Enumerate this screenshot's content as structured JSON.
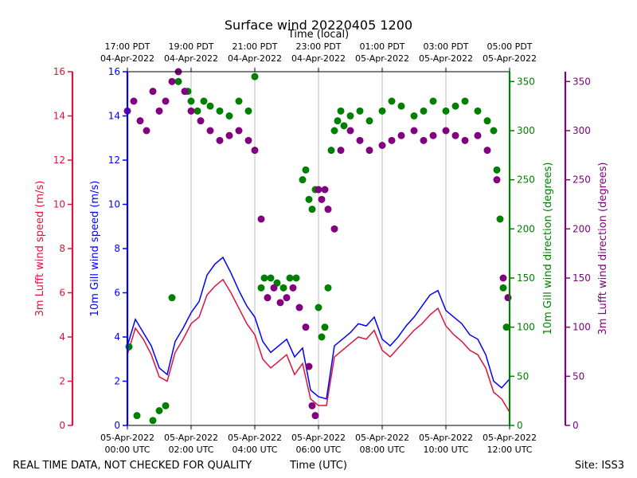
{
  "chart_data": {
    "type": "line+scatter",
    "title": "Surface wind 20220405 1200",
    "top_axis_label": "Time (local)",
    "xlabel": "Time (UTC)",
    "footer_left": "REAL TIME DATA, NOT CHECKED FOR QUALITY",
    "footer_right": "Site: ISS3",
    "x_range_hours": [
      0,
      12
    ],
    "bottom_ticks": [
      {
        "hour": 0,
        "line1": "05-Apr-2022",
        "line2": "00:00 UTC"
      },
      {
        "hour": 2,
        "line1": "05-Apr-2022",
        "line2": "02:00 UTC"
      },
      {
        "hour": 4,
        "line1": "05-Apr-2022",
        "line2": "04:00 UTC"
      },
      {
        "hour": 6,
        "line1": "05-Apr-2022",
        "line2": "06:00 UTC"
      },
      {
        "hour": 8,
        "line1": "05-Apr-2022",
        "line2": "08:00 UTC"
      },
      {
        "hour": 10,
        "line1": "05-Apr-2022",
        "line2": "10:00 UTC"
      },
      {
        "hour": 12,
        "line1": "05-Apr-2022",
        "line2": "12:00 UTC"
      }
    ],
    "top_ticks": [
      {
        "hour": 0,
        "line1": "17:00 PDT",
        "line2": "04-Apr-2022"
      },
      {
        "hour": 2,
        "line1": "19:00 PDT",
        "line2": "04-Apr-2022"
      },
      {
        "hour": 4,
        "line1": "21:00 PDT",
        "line2": "04-Apr-2022"
      },
      {
        "hour": 6,
        "line1": "23:00 PDT",
        "line2": "04-Apr-2022"
      },
      {
        "hour": 8,
        "line1": "01:00 PDT",
        "line2": "05-Apr-2022"
      },
      {
        "hour": 10,
        "line1": "03:00 PDT",
        "line2": "05-Apr-2022"
      },
      {
        "hour": 12,
        "line1": "05:00 PDT",
        "line2": "05-Apr-2022"
      }
    ],
    "axes": {
      "lufft_speed": {
        "label": "3m Lufft wind speed (m/s)",
        "range": [
          0,
          16
        ],
        "ticks": [
          0,
          2,
          4,
          6,
          8,
          10,
          12,
          14,
          16
        ],
        "color": "#dc143c"
      },
      "gill_speed": {
        "label": "10m Gill wind speed (m/s)",
        "range": [
          0,
          16
        ],
        "ticks": [
          0,
          2,
          4,
          6,
          8,
          10,
          12,
          14,
          16
        ],
        "color": "#0000ff"
      },
      "gill_dir": {
        "label": "10m Gill wind direction (degrees)",
        "range": [
          0,
          360
        ],
        "ticks": [
          0,
          50,
          100,
          150,
          200,
          250,
          300,
          350
        ],
        "color": "#008000"
      },
      "lufft_dir": {
        "label": "3m Lufft wind direction (degrees)",
        "range": [
          0,
          360
        ],
        "ticks": [
          0,
          50,
          100,
          150,
          200,
          250,
          300,
          350
        ],
        "color": "#800080"
      }
    },
    "series": [
      {
        "name": "10m Gill wind speed",
        "axis": "gill_speed",
        "style": "line",
        "color": "#0000ff",
        "hours": [
          0,
          0.25,
          0.5,
          0.75,
          1.0,
          1.25,
          1.5,
          1.75,
          2.0,
          2.25,
          2.5,
          2.75,
          3.0,
          3.25,
          3.5,
          3.75,
          4.0,
          4.25,
          4.5,
          4.75,
          5.0,
          5.25,
          5.5,
          5.75,
          6.0,
          6.25,
          6.5,
          6.75,
          7.0,
          7.25,
          7.5,
          7.75,
          8.0,
          8.25,
          8.5,
          8.75,
          9.0,
          9.25,
          9.5,
          9.75,
          10.0,
          10.25,
          10.5,
          10.75,
          11.0,
          11.25,
          11.5,
          11.75,
          12.0
        ],
        "values": [
          3.6,
          4.8,
          4.2,
          3.6,
          2.6,
          2.3,
          3.8,
          4.4,
          5.1,
          5.6,
          6.8,
          7.3,
          7.6,
          6.9,
          6.1,
          5.4,
          4.9,
          3.8,
          3.3,
          3.6,
          3.9,
          3.1,
          3.5,
          1.6,
          1.3,
          1.2,
          3.6,
          3.9,
          4.2,
          4.6,
          4.5,
          4.9,
          3.9,
          3.6,
          4.0,
          4.5,
          4.9,
          5.4,
          5.9,
          6.1,
          5.2,
          4.9,
          4.6,
          4.1,
          3.9,
          3.2,
          2.0,
          1.7,
          2.1
        ]
      },
      {
        "name": "3m Lufft wind speed",
        "axis": "lufft_speed",
        "style": "line",
        "color": "#dc143c",
        "hours": [
          0,
          0.25,
          0.5,
          0.75,
          1.0,
          1.25,
          1.5,
          1.75,
          2.0,
          2.25,
          2.5,
          2.75,
          3.0,
          3.25,
          3.5,
          3.75,
          4.0,
          4.25,
          4.5,
          4.75,
          5.0,
          5.25,
          5.5,
          5.75,
          6.0,
          6.25,
          6.5,
          6.75,
          7.0,
          7.25,
          7.5,
          7.75,
          8.0,
          8.25,
          8.5,
          8.75,
          9.0,
          9.25,
          9.5,
          9.75,
          10.0,
          10.25,
          10.5,
          10.75,
          11.0,
          11.25,
          11.5,
          11.75,
          12.0
        ],
        "values": [
          3.2,
          4.4,
          3.9,
          3.2,
          2.2,
          2.0,
          3.3,
          3.9,
          4.6,
          4.9,
          5.9,
          6.3,
          6.6,
          6.0,
          5.3,
          4.6,
          4.1,
          3.0,
          2.6,
          2.9,
          3.2,
          2.3,
          2.8,
          1.2,
          0.9,
          0.9,
          3.1,
          3.4,
          3.7,
          4.0,
          3.9,
          4.3,
          3.4,
          3.1,
          3.5,
          3.9,
          4.3,
          4.6,
          5.0,
          5.3,
          4.5,
          4.1,
          3.8,
          3.4,
          3.2,
          2.6,
          1.5,
          1.2,
          0.6
        ]
      },
      {
        "name": "10m Gill wind direction",
        "axis": "gill_dir",
        "style": "scatter",
        "color": "#008000",
        "hours": [
          0.05,
          0.3,
          0.8,
          1.0,
          1.2,
          1.4,
          1.6,
          1.9,
          2.0,
          2.2,
          2.4,
          2.6,
          2.9,
          3.2,
          3.5,
          3.8,
          4.0,
          4.2,
          4.3,
          4.5,
          4.7,
          4.9,
          5.1,
          5.3,
          5.5,
          5.6,
          5.7,
          5.8,
          5.9,
          6.0,
          6.1,
          6.2,
          6.3,
          6.4,
          6.5,
          6.6,
          6.7,
          6.8,
          7.0,
          7.3,
          7.6,
          8.0,
          8.3,
          8.6,
          9.0,
          9.3,
          9.6,
          10.0,
          10.3,
          10.6,
          11.0,
          11.3,
          11.5,
          11.6,
          11.7,
          11.8,
          11.9
        ],
        "values": [
          80,
          10,
          5,
          15,
          20,
          130,
          350,
          340,
          330,
          320,
          330,
          325,
          320,
          315,
          330,
          320,
          355,
          140,
          150,
          150,
          145,
          140,
          150,
          150,
          250,
          260,
          230,
          220,
          240,
          120,
          90,
          100,
          140,
          280,
          300,
          310,
          320,
          305,
          315,
          320,
          310,
          320,
          330,
          325,
          315,
          320,
          330,
          320,
          325,
          330,
          320,
          310,
          300,
          260,
          210,
          140,
          100
        ]
      },
      {
        "name": "3m Lufft wind direction",
        "axis": "lufft_dir",
        "style": "scatter",
        "color": "#800080",
        "hours": [
          0,
          0.2,
          0.4,
          0.6,
          0.8,
          1.0,
          1.2,
          1.4,
          1.6,
          1.8,
          2.0,
          2.3,
          2.6,
          2.9,
          3.2,
          3.5,
          3.8,
          4.0,
          4.2,
          4.4,
          4.6,
          4.8,
          5.0,
          5.2,
          5.4,
          5.6,
          5.7,
          5.8,
          5.9,
          6.0,
          6.1,
          6.2,
          6.3,
          6.5,
          6.7,
          7.0,
          7.3,
          7.6,
          8.0,
          8.3,
          8.6,
          9.0,
          9.3,
          9.6,
          10.0,
          10.3,
          10.6,
          11.0,
          11.3,
          11.6,
          11.8,
          11.95
        ],
        "values": [
          320,
          330,
          310,
          300,
          340,
          320,
          330,
          350,
          360,
          340,
          320,
          310,
          300,
          290,
          295,
          300,
          290,
          280,
          210,
          130,
          140,
          125,
          130,
          140,
          120,
          100,
          60,
          20,
          10,
          240,
          230,
          240,
          220,
          200,
          280,
          300,
          290,
          280,
          285,
          290,
          295,
          300,
          290,
          295,
          300,
          295,
          290,
          295,
          280,
          250,
          150,
          130
        ]
      }
    ]
  }
}
